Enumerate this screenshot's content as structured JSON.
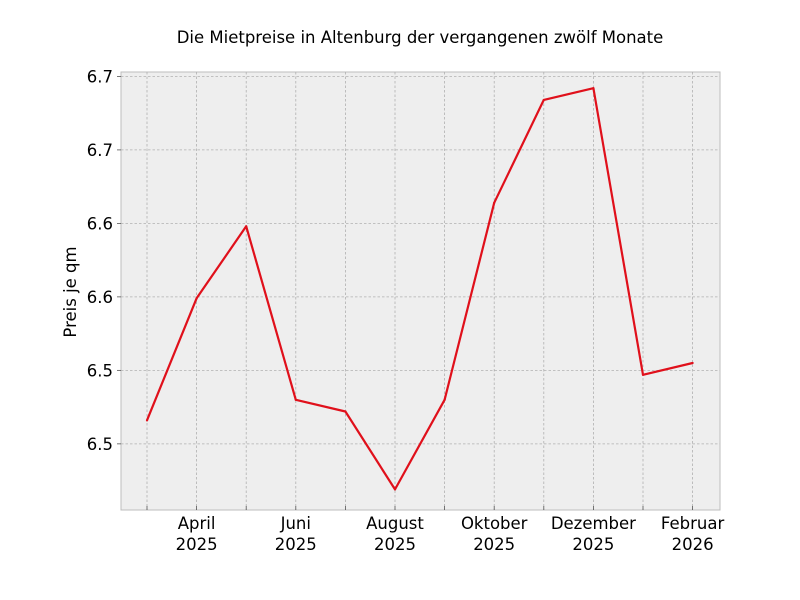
{
  "chart_data": {
    "type": "line",
    "title": "Die Mietpreise in Altenburg der vergangenen zwölf Monate",
    "xlabel": "",
    "ylabel": "Preis je qm",
    "x": [
      "2025-03",
      "2025-04",
      "2025-05",
      "2025-06",
      "2025-07",
      "2025-08",
      "2025-09",
      "2025-10",
      "2025-11",
      "2025-12",
      "2026-01",
      "2026-02"
    ],
    "xticks": [
      {
        "x": "2025-04",
        "line1": "April",
        "line2": "2025"
      },
      {
        "x": "2025-06",
        "line1": "Juni",
        "line2": "2025"
      },
      {
        "x": "2025-08",
        "line1": "August",
        "line2": "2025"
      },
      {
        "x": "2025-10",
        "line1": "Oktober",
        "line2": "2025"
      },
      {
        "x": "2025-12",
        "line1": "Dezember",
        "line2": "2025"
      },
      {
        "x": "2026-02",
        "line1": "Februar",
        "line2": "2026"
      }
    ],
    "yticks": [
      {
        "value": 6.45,
        "label": "6.5"
      },
      {
        "value": 6.5,
        "label": "6.5"
      },
      {
        "value": 6.55,
        "label": "6.6"
      },
      {
        "value": 6.6,
        "label": "6.6"
      },
      {
        "value": 6.65,
        "label": "6.7"
      },
      {
        "value": 6.7,
        "label": "6.7"
      }
    ],
    "ylim": [
      6.405,
      6.703
    ],
    "series": [
      {
        "values": [
          6.466,
          6.549,
          6.598,
          6.48,
          6.472,
          6.419,
          6.48,
          6.614,
          6.684,
          6.692,
          6.497,
          6.505
        ],
        "color": "#e0101b"
      }
    ],
    "grid": true,
    "background": "#eeeeee",
    "grid_color": "#b0b0b0"
  }
}
